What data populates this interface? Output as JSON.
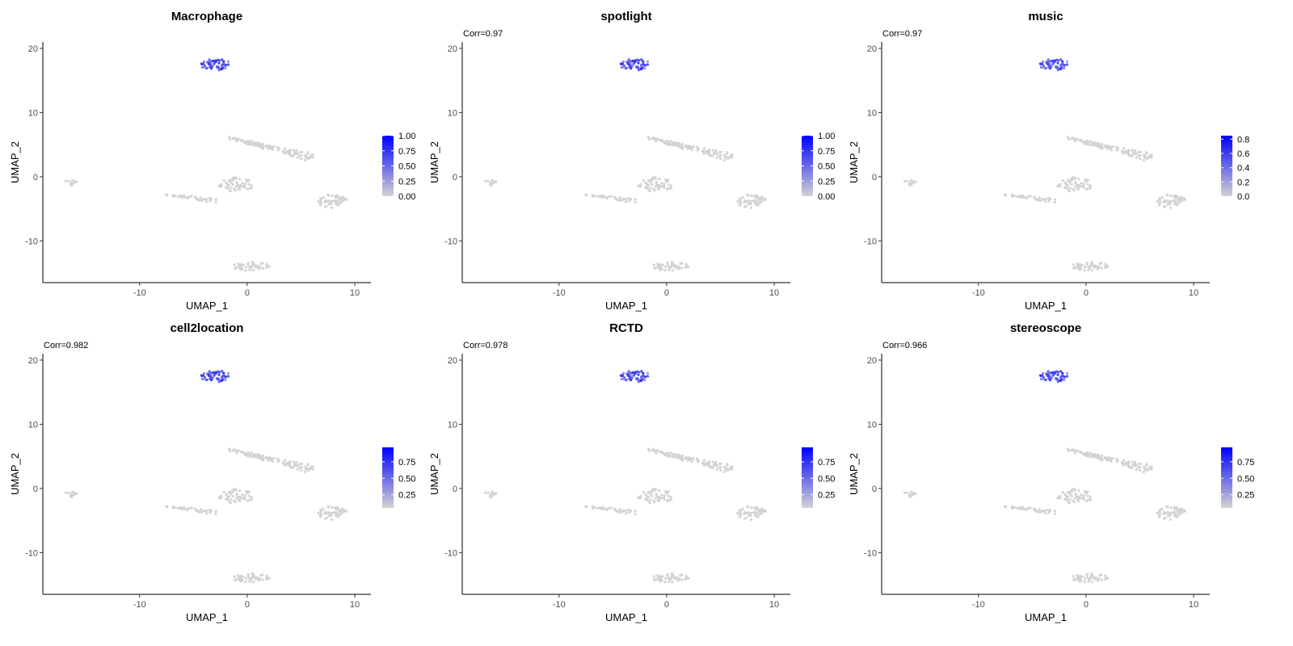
{
  "chart_data": [
    {
      "type": "scatter",
      "title": "Macrophage",
      "annotation": "",
      "xlabel": "UMAP_1",
      "ylabel": "UMAP_2",
      "xlim": [
        -19,
        11.5
      ],
      "ylim": [
        -16.5,
        21
      ],
      "xticks": [
        -10,
        0,
        10
      ],
      "yticks": [
        -10,
        0,
        10,
        20
      ],
      "legend": {
        "position": "right",
        "low_color": "#d3d3d3",
        "high_color": "#0000ff",
        "range": [
          0,
          1.0
        ],
        "ticks": [
          "0.00",
          "0.25",
          "0.50",
          "0.75",
          "1.00"
        ]
      },
      "peak_value": 1.0
    },
    {
      "type": "scatter",
      "title": "spotlight",
      "annotation": "Corr=0.97",
      "xlabel": "UMAP_1",
      "ylabel": "UMAP_2",
      "xlim": [
        -19,
        11.5
      ],
      "ylim": [
        -16.5,
        21
      ],
      "xticks": [
        -10,
        0,
        10
      ],
      "yticks": [
        -10,
        0,
        10,
        20
      ],
      "legend": {
        "position": "right",
        "low_color": "#d3d3d3",
        "high_color": "#0000ff",
        "range": [
          0,
          1.0
        ],
        "ticks": [
          "0.00",
          "0.25",
          "0.50",
          "0.75",
          "1.00"
        ]
      },
      "peak_value": 1.0
    },
    {
      "type": "scatter",
      "title": "music",
      "annotation": "Corr=0.97",
      "xlabel": "UMAP_1",
      "ylabel": "UMAP_2",
      "xlim": [
        -19,
        11.5
      ],
      "ylim": [
        -16.5,
        21
      ],
      "xticks": [
        -10,
        0,
        10
      ],
      "yticks": [
        -10,
        0,
        10,
        20
      ],
      "legend": {
        "position": "right",
        "low_color": "#d3d3d3",
        "high_color": "#0000ff",
        "range": [
          0,
          0.85
        ],
        "ticks": [
          "0.0",
          "0.2",
          "0.4",
          "0.6",
          "0.8"
        ]
      },
      "peak_value": 0.85
    },
    {
      "type": "scatter",
      "title": "cell2location",
      "annotation": "Corr=0.982",
      "xlabel": "UMAP_1",
      "ylabel": "UMAP_2",
      "xlim": [
        -19,
        11.5
      ],
      "ylim": [
        -16.5,
        21
      ],
      "xticks": [
        -10,
        0,
        10
      ],
      "yticks": [
        -10,
        0,
        10,
        20
      ],
      "legend": {
        "position": "right",
        "low_color": "#d3d3d3",
        "high_color": "#0000ff",
        "range": [
          0.05,
          0.97
        ],
        "ticks": [
          "0.25",
          "0.50",
          "0.75"
        ]
      },
      "peak_value": 0.97
    },
    {
      "type": "scatter",
      "title": "RCTD",
      "annotation": "Corr=0.978",
      "xlabel": "UMAP_1",
      "ylabel": "UMAP_2",
      "xlim": [
        -19,
        11.5
      ],
      "ylim": [
        -16.5,
        21
      ],
      "xticks": [
        -10,
        0,
        10
      ],
      "yticks": [
        -10,
        0,
        10,
        20
      ],
      "legend": {
        "position": "right",
        "low_color": "#d3d3d3",
        "high_color": "#0000ff",
        "range": [
          0.05,
          0.97
        ],
        "ticks": [
          "0.25",
          "0.50",
          "0.75"
        ]
      },
      "peak_value": 0.97
    },
    {
      "type": "scatter",
      "title": "stereoscope",
      "annotation": "Corr=0.966",
      "xlabel": "UMAP_1",
      "ylabel": "UMAP_2",
      "xlim": [
        -19,
        11.5
      ],
      "ylim": [
        -16.5,
        21
      ],
      "xticks": [
        -10,
        0,
        10
      ],
      "yticks": [
        -10,
        0,
        10,
        20
      ],
      "legend": {
        "position": "right",
        "low_color": "#d3d3d3",
        "high_color": "#0000ff",
        "range": [
          0.05,
          0.97
        ],
        "ticks": [
          "0.25",
          "0.50",
          "0.75"
        ]
      },
      "peak_value": 0.97
    }
  ],
  "clusters": [
    {
      "name": "macrophage",
      "type": "blob",
      "cx": -3.0,
      "cy": 17.5,
      "rx": 1.5,
      "ry": 0.9,
      "n": 55,
      "value": 0.6
    },
    {
      "name": "cluster-top-right",
      "type": "band",
      "x0": -1.5,
      "y0": 6.0,
      "x1": 6.0,
      "y1": 3.0,
      "width": 0.9,
      "n": 110,
      "value": 0.0
    },
    {
      "name": "cluster-far-left",
      "type": "blob",
      "cx": -16.5,
      "cy": -0.8,
      "rx": 0.7,
      "ry": 0.6,
      "n": 12,
      "value": 0.0
    },
    {
      "name": "cluster-mid-left",
      "type": "band",
      "x0": -7.5,
      "y0": -2.8,
      "x1": -3.0,
      "y1": -3.8,
      "width": 0.6,
      "n": 35,
      "value": 0.0
    },
    {
      "name": "cluster-center",
      "type": "blob",
      "cx": -1.0,
      "cy": -1.2,
      "rx": 1.7,
      "ry": 1.2,
      "n": 55,
      "value": 0.0
    },
    {
      "name": "cluster-right",
      "type": "blob",
      "cx": 7.9,
      "cy": -3.8,
      "rx": 1.4,
      "ry": 1.1,
      "n": 50,
      "value": 0.0
    },
    {
      "name": "cluster-bottom",
      "type": "blob",
      "cx": 0.3,
      "cy": -13.9,
      "rx": 1.8,
      "ry": 0.7,
      "n": 50,
      "value": 0.0
    }
  ]
}
